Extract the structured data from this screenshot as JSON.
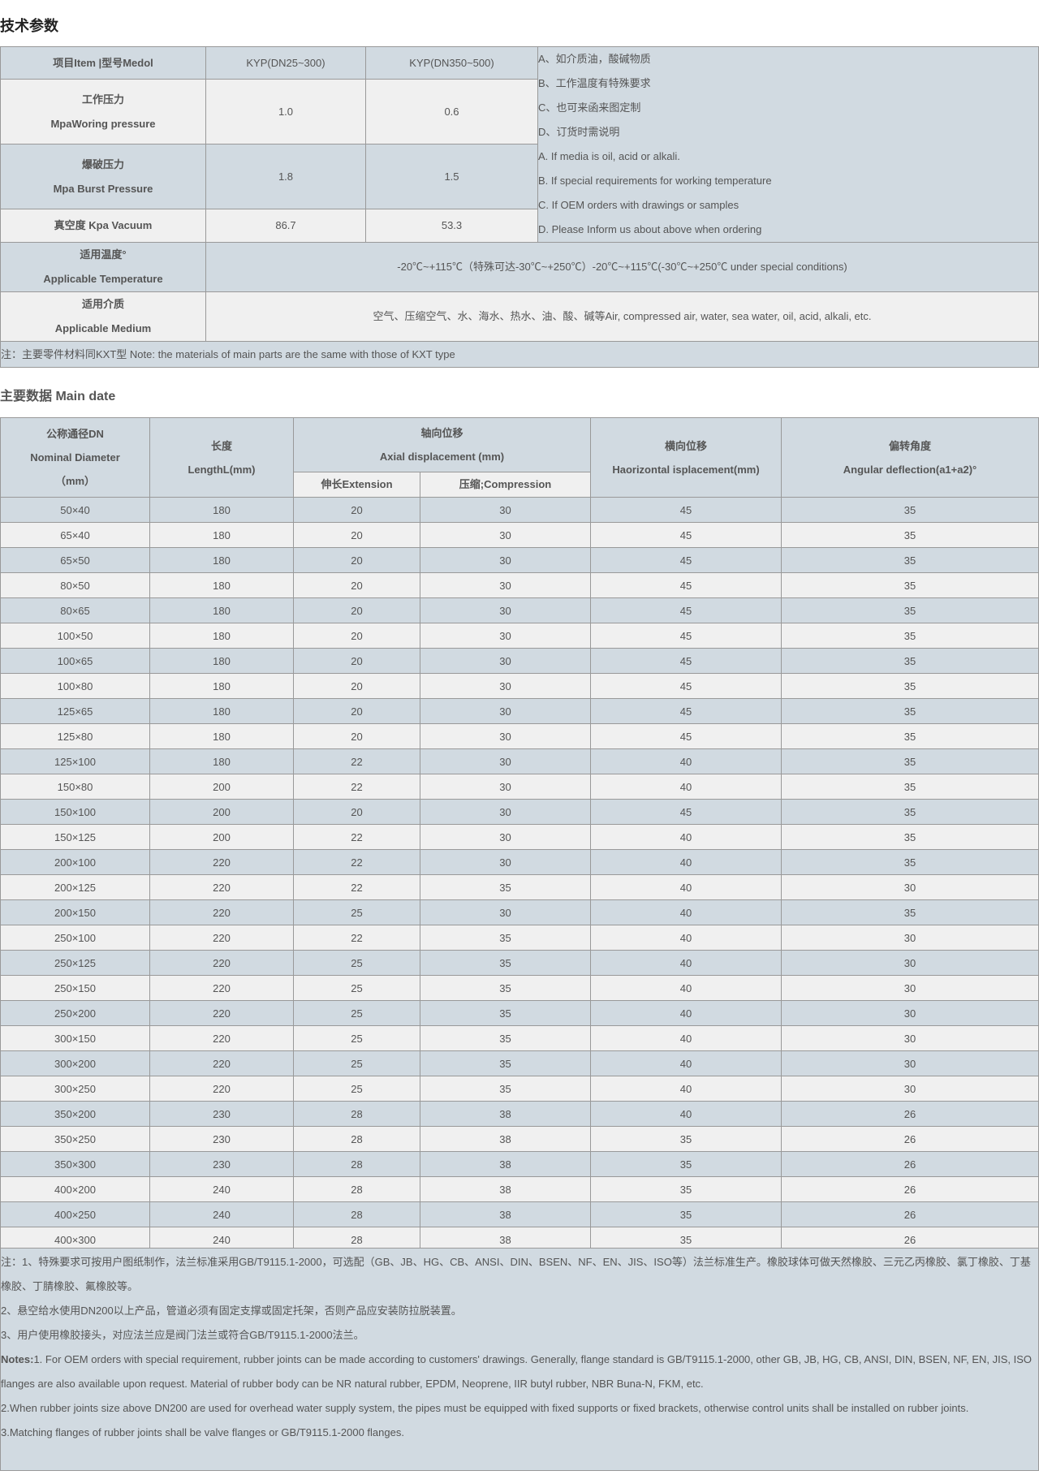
{
  "section1_title": "技术参数",
  "spec_table": {
    "header": {
      "item": "项目Item |型号Medol",
      "model1": "KYP(DN25~300)",
      "model2": "KYP(DN350~500)"
    },
    "working_pressure": {
      "cn": "工作压力",
      "en": "MpaWoring pressure",
      "v1": "1.0",
      "v2": "0.6"
    },
    "burst_pressure": {
      "cn": "爆破压力",
      "en": "Mpa Burst Pressure",
      "v1": "1.8",
      "v2": "1.5"
    },
    "vacuum": {
      "label": "真空度 Kpa Vacuum",
      "v1": "86.7",
      "v2": "53.3"
    },
    "side_notes": [
      "A、如介质油，酸碱物质",
      "B、工作温度有特殊要求",
      "C、也可来函来图定制",
      "D、订货时需说明",
      "A. If media is oil, acid or alkali.",
      "B. If special requirements for working temperature",
      "C. If OEM orders with drawings or samples",
      "D. Please Inform us about above when ordering"
    ],
    "temperature": {
      "cn": "适用温度°",
      "en": "Applicable Temperature",
      "value": "-20℃~+115℃（特殊可达-30℃~+250℃）-20℃~+115℃(-30℃~+250℃ under special conditions)"
    },
    "medium": {
      "cn": "适用介质",
      "en": "Applicable Medium",
      "value": "空气、压缩空气、水、海水、热水、油、酸、碱等Air, compressed air, water, sea water, oil, acid, alkali, etc."
    },
    "note": "注：主要零件材料同KXT型 Note: the materials of main parts are the same with those of KXT type"
  },
  "section2_title": "主要数据 Main date",
  "main_table": {
    "headers": {
      "dn_cn": "公称通径DN",
      "dn_en": "Nominal Diameter",
      "dn_unit": "（mm）",
      "len_cn": "长度",
      "len_en": "LengthL(mm)",
      "axial_cn": "轴向位移",
      "axial_en": "Axial displacement (mm)",
      "ext": "伸长Extension",
      "comp": "压缩;Compression",
      "hor_cn": "横向位移",
      "hor_en": "Haorizontal isplacement(mm)",
      "ang_cn": "偏转角度",
      "ang_en": "Angular deflection(a1+a2)°"
    },
    "rows": [
      [
        "50×40",
        "180",
        "20",
        "30",
        "45",
        "35"
      ],
      [
        "65×40",
        "180",
        "20",
        "30",
        "45",
        "35"
      ],
      [
        "65×50",
        "180",
        "20",
        "30",
        "45",
        "35"
      ],
      [
        "80×50",
        "180",
        "20",
        "30",
        "45",
        "35"
      ],
      [
        "80×65",
        "180",
        "20",
        "30",
        "45",
        "35"
      ],
      [
        "100×50",
        "180",
        "20",
        "30",
        "45",
        "35"
      ],
      [
        "100×65",
        "180",
        "20",
        "30",
        "45",
        "35"
      ],
      [
        "100×80",
        "180",
        "20",
        "30",
        "45",
        "35"
      ],
      [
        "125×65",
        "180",
        "20",
        "30",
        "45",
        "35"
      ],
      [
        "125×80",
        "180",
        "20",
        "30",
        "45",
        "35"
      ],
      [
        "125×100",
        "180",
        "22",
        "30",
        "40",
        "35"
      ],
      [
        "150×80",
        "200",
        "22",
        "30",
        "40",
        "35"
      ],
      [
        "150×100",
        "200",
        "20",
        "30",
        "45",
        "35"
      ],
      [
        "150×125",
        "200",
        "22",
        "30",
        "40",
        "35"
      ],
      [
        "200×100",
        "220",
        "22",
        "30",
        "40",
        "35"
      ],
      [
        "200×125",
        "220",
        "22",
        "35",
        "40",
        "30"
      ],
      [
        "200×150",
        "220",
        "25",
        "30",
        "40",
        "35"
      ],
      [
        "250×100",
        "220",
        "22",
        "35",
        "40",
        "30"
      ],
      [
        "250×125",
        "220",
        "25",
        "35",
        "40",
        "30"
      ],
      [
        "250×150",
        "220",
        "25",
        "35",
        "40",
        "30"
      ],
      [
        "250×200",
        "220",
        "25",
        "35",
        "40",
        "30"
      ],
      [
        "300×150",
        "220",
        "25",
        "35",
        "40",
        "30"
      ],
      [
        "300×200",
        "220",
        "25",
        "35",
        "40",
        "30"
      ],
      [
        "300×250",
        "220",
        "25",
        "35",
        "40",
        "30"
      ],
      [
        "350×200",
        "230",
        "28",
        "38",
        "40",
        "26"
      ],
      [
        "350×250",
        "230",
        "28",
        "38",
        "35",
        "26"
      ],
      [
        "350×300",
        "230",
        "28",
        "38",
        "35",
        "26"
      ],
      [
        "400×200",
        "240",
        "28",
        "38",
        "35",
        "26"
      ],
      [
        "400×250",
        "240",
        "28",
        "38",
        "35",
        "26"
      ],
      [
        "400×300",
        "240",
        "28",
        "38",
        "35",
        "26"
      ]
    ]
  },
  "notes": {
    "cn1": "注：1、特殊要求可按用户图纸制作，法兰标准采用GB/T9115.1-2000，可选配（GB、JB、HG、CB、ANSI、DIN、BSEN、NF、EN、JIS、ISO等）法兰标准生产。橡胶球体可做天然橡胶、三元乙丙橡胶、氯丁橡胶、丁基橡胶、丁腈橡胶、氟橡胶等。",
    "cn2": "2、悬空给水使用DN200以上产品，管道必须有固定支撑或固定托架，否则产品应安装防拉脱装置。",
    "cn3": "3、用户使用橡胶接头，对应法兰应是阀门法兰或符合GB/T9115.1-2000法兰。",
    "en_label": "Notes:",
    "en1": "1. For OEM orders with special requirement, rubber joints can be made according to customers' drawings. Generally, flange standard is GB/T9115.1-2000, other GB, JB, HG, CB, ANSI, DIN, BSEN, NF, EN, JIS, ISO flanges are also available upon request. Material of rubber body can be NR natural rubber, EPDM, Neoprene, IIR butyl rubber, NBR Buna-N, FKM, etc.",
    "en2": "2.When rubber joints size above DN200 are used for overhead water supply system, the pipes must be equipped with fixed supports or fixed brackets, otherwise control units shall be installed on rubber joints.",
    "en3": "3.Matching flanges of rubber joints shall be valve flanges or GB/T9115.1-2000 flanges."
  },
  "colors": {
    "header_bg": "#d1dae1",
    "alt_bg": "#f0f0f0",
    "border": "#999999",
    "text": "#555555"
  }
}
